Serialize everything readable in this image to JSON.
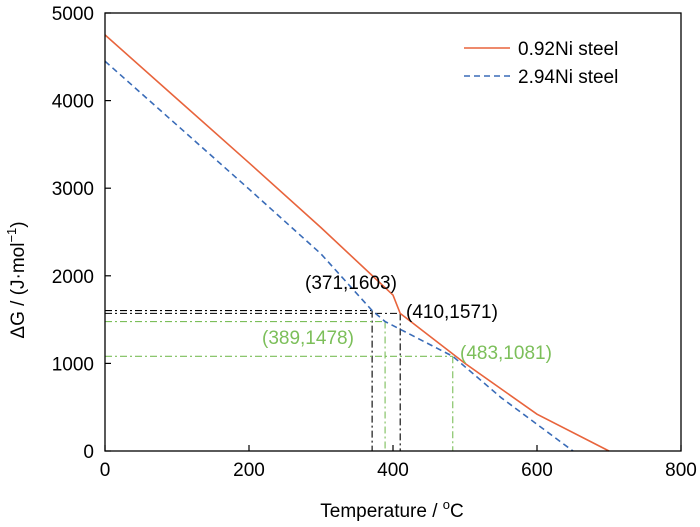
{
  "chart_data": {
    "type": "line",
    "xlabel_main": "Temperature / ",
    "xlabel_unit_sup": "o",
    "xlabel_unit": "C",
    "ylabel_delta": "ΔG",
    "ylabel_rest": " / (J·mol",
    "ylabel_sup": "−1",
    "ylabel_close": ")",
    "xlim": [
      0,
      800
    ],
    "ylim": [
      0,
      5000
    ],
    "x_ticks": [
      0,
      200,
      400,
      600,
      800
    ],
    "y_ticks": [
      0,
      1000,
      2000,
      3000,
      4000,
      5000
    ],
    "x_tick_labels": [
      "0",
      "200",
      "400",
      "600",
      "800"
    ],
    "y_tick_labels": [
      "0",
      "1000",
      "2000",
      "3000",
      "4000",
      "5000"
    ],
    "legend_position": "top-right",
    "series": [
      {
        "name": "0.92Ni steel",
        "color": "#e8643c",
        "style": "solid",
        "x": [
          0,
          100,
          200,
          300,
          400,
          410,
          500,
          600,
          700
        ],
        "y": [
          4750,
          4020,
          3290,
          2550,
          1780,
          1571,
          1000,
          420,
          0
        ]
      },
      {
        "name": "2.94Ni steel",
        "color": "#3a6cb8",
        "style": "dashed",
        "x": [
          0,
          100,
          200,
          300,
          371,
          389,
          483,
          550,
          650
        ],
        "y": [
          4450,
          3720,
          2990,
          2250,
          1603,
          1478,
          1081,
          610,
          0
        ]
      }
    ],
    "annotations": [
      {
        "label": "(371,1603)",
        "x": 371,
        "y": 1603,
        "color": "#000000"
      },
      {
        "label": "(410,1571)",
        "x": 410,
        "y": 1571,
        "color": "#000000"
      },
      {
        "label": "(389,1478)",
        "x": 389,
        "y": 1478,
        "color": "#7cbf5a"
      },
      {
        "label": "(483,1081)",
        "x": 483,
        "y": 1081,
        "color": "#7cbf5a"
      }
    ]
  }
}
